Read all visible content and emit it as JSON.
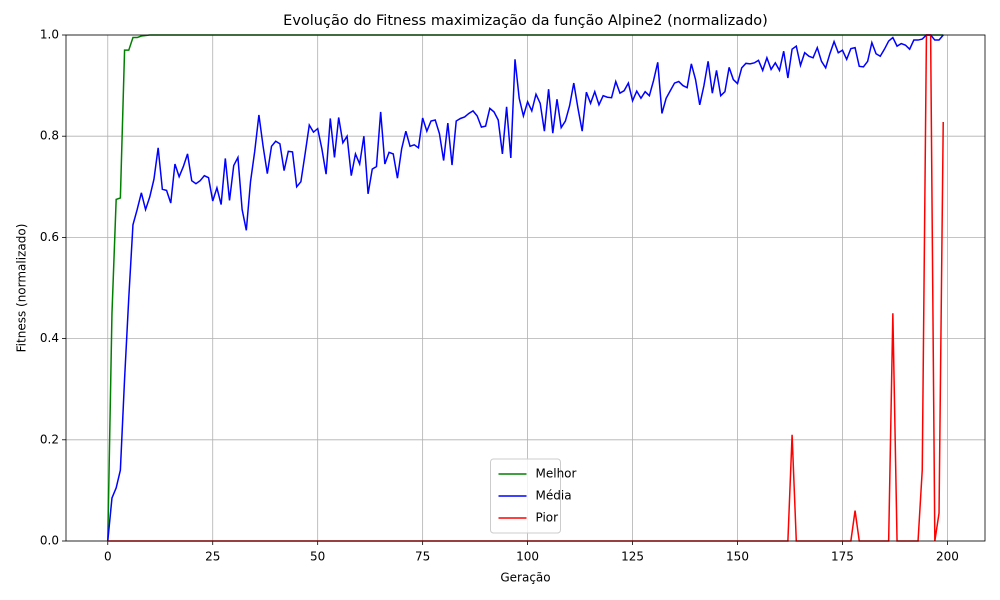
{
  "chart_data": {
    "type": "line",
    "title": "Evolução do Fitness maximização da função Alpine2 (normalizado)",
    "x_label": "Geração",
    "y_label": "Fitness (normalizado)",
    "xlim": [
      -9.95,
      208.95
    ],
    "ylim": [
      0,
      1
    ],
    "xticks": [
      0,
      25,
      50,
      75,
      100,
      125,
      150,
      175,
      200
    ],
    "yticks": [
      {
        "value": 0,
        "label": "0.0"
      },
      {
        "value": 0.2,
        "label": "0.2"
      },
      {
        "value": 0.4,
        "label": "0.4"
      },
      {
        "value": 0.6,
        "label": "0.6"
      },
      {
        "value": 0.8,
        "label": "0.8"
      },
      {
        "value": 1,
        "label": "1.0"
      }
    ],
    "grid": true,
    "legend": "lower center",
    "x": [
      0,
      1,
      2,
      3,
      4,
      5,
      6,
      7,
      8,
      9,
      10,
      11,
      12,
      13,
      14,
      15,
      16,
      17,
      18,
      19,
      20,
      21,
      22,
      23,
      24,
      25,
      26,
      27,
      28,
      29,
      30,
      31,
      32,
      33,
      34,
      35,
      36,
      37,
      38,
      39,
      40,
      41,
      42,
      43,
      44,
      45,
      46,
      47,
      48,
      49,
      50,
      51,
      52,
      53,
      54,
      55,
      56,
      57,
      58,
      59,
      60,
      61,
      62,
      63,
      64,
      65,
      66,
      67,
      68,
      69,
      70,
      71,
      72,
      73,
      74,
      75,
      76,
      77,
      78,
      79,
      80,
      81,
      82,
      83,
      84,
      85,
      86,
      87,
      88,
      89,
      90,
      91,
      92,
      93,
      94,
      95,
      96,
      97,
      98,
      99,
      100,
      101,
      102,
      103,
      104,
      105,
      106,
      107,
      108,
      109,
      110,
      111,
      112,
      113,
      114,
      115,
      116,
      117,
      118,
      119,
      120,
      121,
      122,
      123,
      124,
      125,
      126,
      127,
      128,
      129,
      130,
      131,
      132,
      133,
      134,
      135,
      136,
      137,
      138,
      139,
      140,
      141,
      142,
      143,
      144,
      145,
      146,
      147,
      148,
      149,
      150,
      151,
      152,
      153,
      154,
      155,
      156,
      157,
      158,
      159,
      160,
      161,
      162,
      163,
      164,
      165,
      166,
      167,
      168,
      169,
      170,
      171,
      172,
      173,
      174,
      175,
      176,
      177,
      178,
      179,
      180,
      181,
      182,
      183,
      184,
      185,
      186,
      187,
      188,
      189,
      190,
      191,
      192,
      193,
      194,
      195,
      196,
      197,
      198,
      199
    ],
    "series": [
      {
        "name": "Melhor",
        "color": "#008000",
        "values": [
          0,
          0.45,
          0.675,
          0.678,
          0.97,
          0.97,
          0.995,
          0.995,
          0.998,
          0.999,
          1,
          1,
          1,
          1,
          1,
          1,
          1,
          1,
          1,
          1,
          1,
          1,
          1,
          1,
          1,
          1,
          1,
          1,
          1,
          1,
          1,
          1,
          1,
          1,
          1,
          1,
          1,
          1,
          1,
          1,
          1,
          1,
          1,
          1,
          1,
          1,
          1,
          1,
          1,
          1,
          1,
          1,
          1,
          1,
          1,
          1,
          1,
          1,
          1,
          1,
          1,
          1,
          1,
          1,
          1,
          1,
          1,
          1,
          1,
          1,
          1,
          1,
          1,
          1,
          1,
          1,
          1,
          1,
          1,
          1,
          1,
          1,
          1,
          1,
          1,
          1,
          1,
          1,
          1,
          1,
          1,
          1,
          1,
          1,
          1,
          1,
          1,
          1,
          1,
          1,
          1,
          1,
          1,
          1,
          1,
          1,
          1,
          1,
          1,
          1,
          1,
          1,
          1,
          1,
          1,
          1,
          1,
          1,
          1,
          1,
          1,
          1,
          1,
          1,
          1,
          1,
          1,
          1,
          1,
          1,
          1,
          1,
          1,
          1,
          1,
          1,
          1,
          1,
          1,
          1,
          1,
          1,
          1,
          1,
          1,
          1,
          1,
          1,
          1,
          1,
          1,
          1,
          1,
          1,
          1,
          1,
          1,
          1,
          1,
          1,
          1,
          1,
          1,
          1,
          1,
          1,
          1,
          1,
          1,
          1,
          1,
          1,
          1,
          1,
          1,
          1,
          1,
          1,
          1,
          1,
          1,
          1,
          1,
          1,
          1,
          1,
          1,
          1,
          1,
          1,
          1,
          1,
          1,
          1,
          1,
          1,
          1,
          1,
          1,
          1
        ]
      },
      {
        "name": "Média",
        "color": "#0000ff",
        "values": [
          0,
          0.085,
          0.105,
          0.14,
          0.32,
          0.48,
          0.625,
          0.655,
          0.688,
          0.655,
          0.68,
          0.715,
          0.777,
          0.695,
          0.693,
          0.668,
          0.745,
          0.72,
          0.74,
          0.765,
          0.712,
          0.706,
          0.712,
          0.722,
          0.718,
          0.672,
          0.698,
          0.665,
          0.756,
          0.673,
          0.742,
          0.758,
          0.655,
          0.614,
          0.71,
          0.77,
          0.842,
          0.78,
          0.726,
          0.78,
          0.79,
          0.785,
          0.732,
          0.77,
          0.769,
          0.7,
          0.71,
          0.765,
          0.822,
          0.808,
          0.815,
          0.775,
          0.725,
          0.835,
          0.758,
          0.837,
          0.787,
          0.8,
          0.722,
          0.765,
          0.745,
          0.8,
          0.686,
          0.735,
          0.74,
          0.848,
          0.745,
          0.768,
          0.765,
          0.717,
          0.775,
          0.81,
          0.78,
          0.783,
          0.777,
          0.836,
          0.81,
          0.83,
          0.832,
          0.805,
          0.752,
          0.826,
          0.743,
          0.83,
          0.835,
          0.838,
          0.845,
          0.85,
          0.84,
          0.818,
          0.82,
          0.855,
          0.848,
          0.832,
          0.765,
          0.858,
          0.757,
          0.952,
          0.875,
          0.84,
          0.868,
          0.85,
          0.883,
          0.865,
          0.81,
          0.893,
          0.806,
          0.873,
          0.817,
          0.83,
          0.86,
          0.905,
          0.855,
          0.81,
          0.887,
          0.865,
          0.888,
          0.862,
          0.88,
          0.877,
          0.876,
          0.908,
          0.885,
          0.89,
          0.905,
          0.87,
          0.889,
          0.875,
          0.888,
          0.88,
          0.91,
          0.946,
          0.845,
          0.875,
          0.89,
          0.905,
          0.908,
          0.9,
          0.896,
          0.943,
          0.912,
          0.862,
          0.9,
          0.948,
          0.885,
          0.93,
          0.88,
          0.888,
          0.936,
          0.912,
          0.904,
          0.935,
          0.944,
          0.943,
          0.945,
          0.95,
          0.93,
          0.955,
          0.932,
          0.945,
          0.93,
          0.968,
          0.915,
          0.972,
          0.978,
          0.94,
          0.965,
          0.958,
          0.955,
          0.975,
          0.948,
          0.935,
          0.963,
          0.987,
          0.965,
          0.97,
          0.952,
          0.973,
          0.975,
          0.938,
          0.937,
          0.948,
          0.985,
          0.963,
          0.958,
          0.972,
          0.988,
          0.995,
          0.978,
          0.983,
          0.98,
          0.972,
          0.99,
          0.99,
          0.992,
          1,
          1,
          0.99,
          0.99,
          1
        ]
      },
      {
        "name": "Pior",
        "color": "#ff0000",
        "values": [
          0,
          0,
          0,
          0,
          0,
          0,
          0,
          0,
          0,
          0,
          0,
          0,
          0,
          0,
          0,
          0,
          0,
          0,
          0,
          0,
          0,
          0,
          0,
          0,
          0,
          0,
          0,
          0,
          0,
          0,
          0,
          0,
          0,
          0,
          0,
          0,
          0,
          0,
          0,
          0,
          0,
          0,
          0,
          0,
          0,
          0,
          0,
          0,
          0,
          0,
          0,
          0,
          0,
          0,
          0,
          0,
          0,
          0,
          0,
          0,
          0,
          0,
          0,
          0,
          0,
          0,
          0,
          0,
          0,
          0,
          0,
          0,
          0,
          0,
          0,
          0,
          0,
          0,
          0,
          0,
          0,
          0,
          0,
          0,
          0,
          0,
          0,
          0,
          0,
          0,
          0,
          0,
          0,
          0,
          0,
          0,
          0,
          0,
          0,
          0,
          0,
          0,
          0,
          0,
          0,
          0,
          0,
          0,
          0,
          0,
          0,
          0,
          0,
          0,
          0,
          0,
          0,
          0,
          0,
          0,
          0,
          0,
          0,
          0,
          0,
          0,
          0,
          0,
          0,
          0,
          0,
          0,
          0,
          0,
          0,
          0,
          0,
          0,
          0,
          0,
          0,
          0,
          0,
          0,
          0,
          0,
          0,
          0,
          0,
          0,
          0,
          0,
          0,
          0,
          0,
          0,
          0,
          0,
          0,
          0,
          0,
          0,
          0,
          0.21,
          0,
          0,
          0,
          0,
          0,
          0,
          0,
          0,
          0,
          0,
          0,
          0,
          0,
          0,
          0.06,
          0,
          0,
          0,
          0,
          0,
          0,
          0,
          0,
          0.45,
          0,
          0,
          0,
          0,
          0,
          0,
          0.14,
          1,
          1,
          0,
          0.055,
          0.828
        ]
      }
    ]
  }
}
